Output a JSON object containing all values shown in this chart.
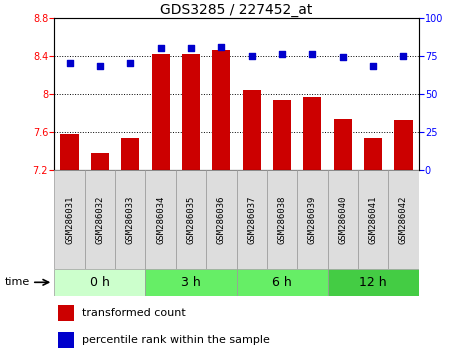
{
  "title": "GDS3285 / 227452_at",
  "samples": [
    "GSM286031",
    "GSM286032",
    "GSM286033",
    "GSM286034",
    "GSM286035",
    "GSM286036",
    "GSM286037",
    "GSM286038",
    "GSM286039",
    "GSM286040",
    "GSM286041",
    "GSM286042"
  ],
  "bar_values": [
    7.58,
    7.38,
    7.54,
    8.42,
    8.42,
    8.46,
    8.04,
    7.93,
    7.97,
    7.73,
    7.54,
    7.72
  ],
  "percentile_values": [
    70,
    68,
    70,
    80,
    80,
    81,
    75,
    76,
    76,
    74,
    68,
    75
  ],
  "bar_color": "#cc0000",
  "dot_color": "#0000cc",
  "ylim_left": [
    7.2,
    8.8
  ],
  "ylim_right": [
    0,
    100
  ],
  "yticks_left": [
    7.2,
    7.6,
    8.0,
    8.4,
    8.8
  ],
  "yticks_right": [
    0,
    25,
    50,
    75,
    100
  ],
  "group_labels": [
    "0 h",
    "3 h",
    "6 h",
    "12 h"
  ],
  "group_colors": [
    "#ccffcc",
    "#66ee66",
    "#66ee66",
    "#44cc44"
  ],
  "group_sizes": [
    3,
    3,
    3,
    3
  ],
  "background_color": "#ffffff",
  "bar_bottom": 7.2,
  "bar_width": 0.6,
  "tick_label_fontsize": 7,
  "title_fontsize": 10,
  "legend_fontsize": 8,
  "group_fontsize": 9
}
